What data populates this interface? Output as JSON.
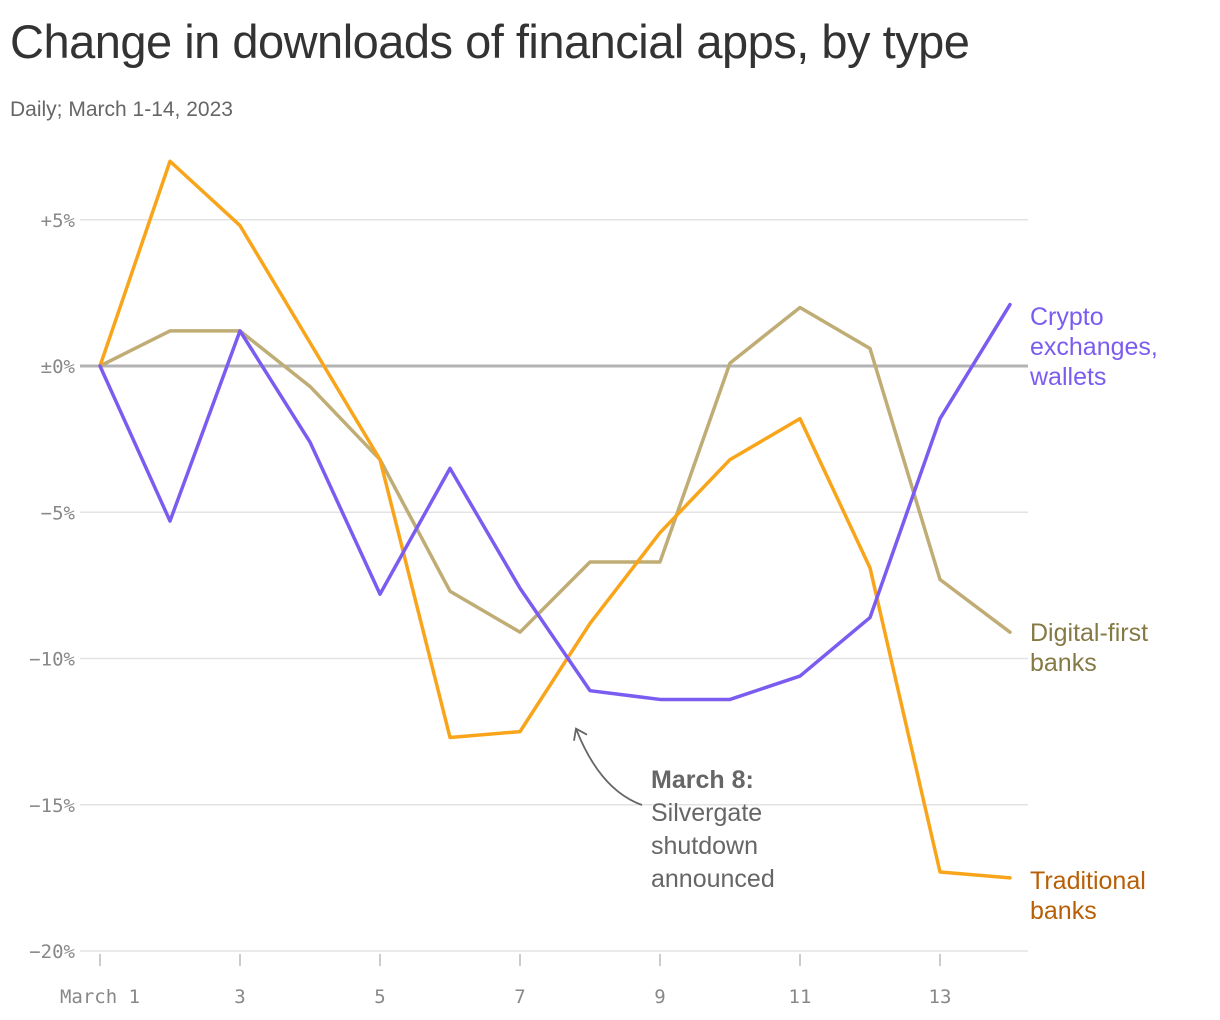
{
  "title": "Change in downloads of financial apps, by type",
  "subtitle": "Daily; March 1-14, 2023",
  "chart_data": {
    "type": "line",
    "title": "Change in downloads of financial apps, by type",
    "subtitle": "Daily; March 1-14, 2023",
    "xlabel": "",
    "ylabel": "",
    "x": [
      1,
      2,
      3,
      4,
      5,
      6,
      7,
      8,
      9,
      10,
      11,
      12,
      13,
      14
    ],
    "x_ticks": [
      {
        "value": 1,
        "label": "March 1"
      },
      {
        "value": 3,
        "label": "3"
      },
      {
        "value": 5,
        "label": "5"
      },
      {
        "value": 7,
        "label": "7"
      },
      {
        "value": 9,
        "label": "9"
      },
      {
        "value": 11,
        "label": "11"
      },
      {
        "value": 13,
        "label": "13"
      }
    ],
    "y_ticks": [
      {
        "value": 5,
        "label": "+5%"
      },
      {
        "value": 0,
        "label": "±0%"
      },
      {
        "value": -5,
        "label": "−5%"
      },
      {
        "value": -10,
        "label": "−10%"
      },
      {
        "value": -15,
        "label": "−15%"
      },
      {
        "value": -20,
        "label": "−20%"
      }
    ],
    "xlim": [
      1,
      14
    ],
    "ylim": [
      -20,
      7
    ],
    "grid": true,
    "legend": "direct labels at right end of lines",
    "series": [
      {
        "name": "Crypto exchanges, wallets",
        "label_lines": [
          "Crypto",
          "exchanges,",
          "wallets"
        ],
        "color": "#7b5cf0",
        "label_color": "#7b5cf0",
        "values": [
          0,
          -5.3,
          1.2,
          -2.6,
          -7.8,
          -3.5,
          -7.6,
          -11.1,
          -11.4,
          -11.4,
          -10.6,
          -8.6,
          -1.8,
          2.1
        ]
      },
      {
        "name": "Digital-first banks",
        "label_lines": [
          "Digital-first",
          "banks"
        ],
        "color": "#bfad75",
        "label_color": "#857a44",
        "values": [
          0,
          1.2,
          1.2,
          -0.7,
          -3.2,
          -7.7,
          -9.1,
          -6.7,
          -6.7,
          0.1,
          2.0,
          0.6,
          -7.3,
          -9.1
        ]
      },
      {
        "name": "Traditional banks",
        "label_lines": [
          "Traditional",
          "banks"
        ],
        "color": "#f9a51b",
        "label_color": "#b85f06",
        "values": [
          0,
          7.0,
          4.8,
          0.8,
          -3.2,
          -12.7,
          -12.5,
          -8.8,
          -5.7,
          -3.2,
          -1.8,
          -6.9,
          -17.3,
          -17.5
        ]
      }
    ],
    "annotation": {
      "x": 7.8,
      "y": -12.4,
      "bold": "March 8:",
      "lines": [
        "Silvergate",
        "shutdown",
        "announced"
      ]
    }
  }
}
